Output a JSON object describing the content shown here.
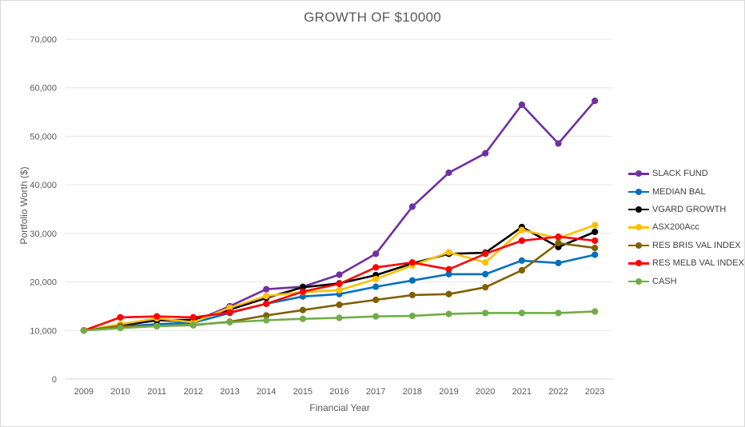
{
  "chart_data": {
    "type": "line",
    "title": "GROWTH OF $10000",
    "xlabel": "Financial Year",
    "ylabel": "Portfolio Worth ($)",
    "ylim": [
      0,
      70000
    ],
    "y_ticks": [
      "0",
      "10,000",
      "20,000",
      "30,000",
      "40,000",
      "50,000",
      "60,000",
      "70,000"
    ],
    "y_tick_values": [
      0,
      10000,
      20000,
      30000,
      40000,
      50000,
      60000,
      70000
    ],
    "grid": true,
    "legend_position": "right",
    "categories": [
      "2009",
      "2010",
      "2011",
      "2012",
      "2013",
      "2014",
      "2015",
      "2016",
      "2017",
      "2018",
      "2019",
      "2020",
      "2021",
      "2022",
      "2023"
    ],
    "series": [
      {
        "name": "SLACK FUND",
        "color": "#7030a0",
        "values": [
          10000,
          11000,
          12100,
          11800,
          15000,
          18500,
          19000,
          21500,
          25800,
          35500,
          42500,
          46500,
          56500,
          48500,
          57300
        ]
      },
      {
        "name": "MEDIAN BAL",
        "color": "#0070c0",
        "values": [
          10000,
          10800,
          11300,
          11600,
          13600,
          15500,
          17000,
          17500,
          19000,
          20300,
          21600,
          21600,
          24400,
          23900,
          25600
        ]
      },
      {
        "name": "VGARD GROWTH",
        "color": "#000000",
        "values": [
          10000,
          11000,
          12100,
          12200,
          14300,
          16700,
          18900,
          19700,
          21400,
          23800,
          25800,
          26000,
          31300,
          27200,
          30300
        ]
      },
      {
        "name": "ASX200Acc",
        "color": "#ffc000",
        "values": [
          10000,
          11300,
          12500,
          11700,
          14700,
          17100,
          17900,
          18300,
          20600,
          23400,
          26100,
          24000,
          30700,
          29000,
          31700
        ]
      },
      {
        "name": "RES BRIS VAL INDEX",
        "color": "#7f6000",
        "values": [
          10000,
          10900,
          10900,
          11100,
          11800,
          13100,
          14200,
          15300,
          16300,
          17300,
          17500,
          18900,
          22400,
          28000,
          27000
        ]
      },
      {
        "name": "RES MELB VAL INDEX",
        "color": "#ff0000",
        "values": [
          10000,
          12700,
          12900,
          12700,
          13700,
          15500,
          18000,
          19600,
          23000,
          24000,
          22600,
          25800,
          28500,
          29300,
          28500
        ]
      },
      {
        "name": "CASH",
        "color": "#70ad47",
        "values": [
          10000,
          10500,
          10900,
          11200,
          11700,
          12100,
          12400,
          12600,
          12900,
          13000,
          13400,
          13600,
          13600,
          13600,
          13900
        ]
      }
    ]
  }
}
